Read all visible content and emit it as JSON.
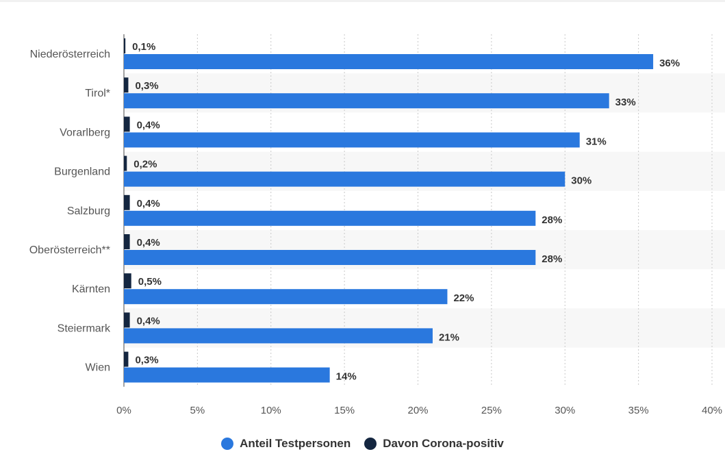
{
  "chart_data": {
    "type": "bar",
    "orientation": "horizontal",
    "categories": [
      "Niederösterreich",
      "Tirol*",
      "Vorarlberg",
      "Burgenland",
      "Salzburg",
      "Oberösterreich**",
      "Kärnten",
      "Steiermark",
      "Wien"
    ],
    "series": [
      {
        "name": "Anteil Testpersonen",
        "color": "#2a78de",
        "values": [
          36,
          33,
          31,
          30,
          28,
          28,
          22,
          21,
          14
        ],
        "labels": [
          "36%",
          "33%",
          "31%",
          "30%",
          "28%",
          "28%",
          "22%",
          "21%",
          "14%"
        ]
      },
      {
        "name": "Davon Corona-positiv",
        "color": "#142640",
        "values": [
          0.1,
          0.3,
          0.4,
          0.2,
          0.4,
          0.4,
          0.5,
          0.4,
          0.3
        ],
        "labels": [
          "0,1%",
          "0,3%",
          "0,4%",
          "0,2%",
          "0,4%",
          "0,4%",
          "0,5%",
          "0,4%",
          "0,3%"
        ]
      }
    ],
    "xlim": [
      0,
      40
    ],
    "x_ticks": [
      0,
      5,
      10,
      15,
      20,
      25,
      30,
      35,
      40
    ],
    "x_tick_labels": [
      "0%",
      "5%",
      "10%",
      "15%",
      "20%",
      "25%",
      "30%",
      "35%",
      "40%"
    ],
    "grid": "vertical-dotted",
    "legend_position": "bottom-center"
  },
  "colors": {
    "band": "#f7f7f7",
    "grid": "#c8c8c8",
    "axis_text": "#555555",
    "label_text": "#333333"
  }
}
